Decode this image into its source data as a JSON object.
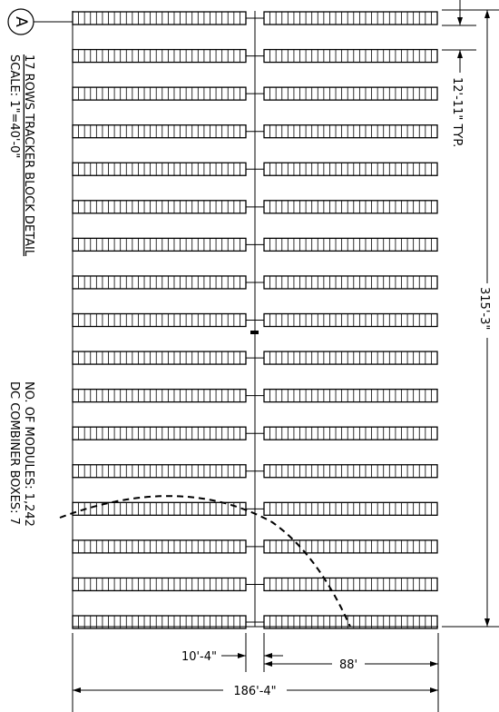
{
  "detail": {
    "marker": "A",
    "title": "17 ROWS TRACKER BLOCK DETAIL",
    "scale": "SCALE: 1\"=40'-0\""
  },
  "notes": {
    "modules": "NO. OF MODULES:  1,242",
    "combiners": "DC COMBINER BOXES: 7"
  },
  "dimensions": {
    "row_pitch": "12'-11\" TYP.",
    "total_height": "315'-3\"",
    "road_gap": "10'-4\"",
    "row_length": "88'",
    "total_width": "186'-4\""
  },
  "layout_counts": {
    "rows": 17,
    "modules_per_half_row": 29
  },
  "colors": {
    "line": "#000000",
    "background": "#ffffff"
  }
}
